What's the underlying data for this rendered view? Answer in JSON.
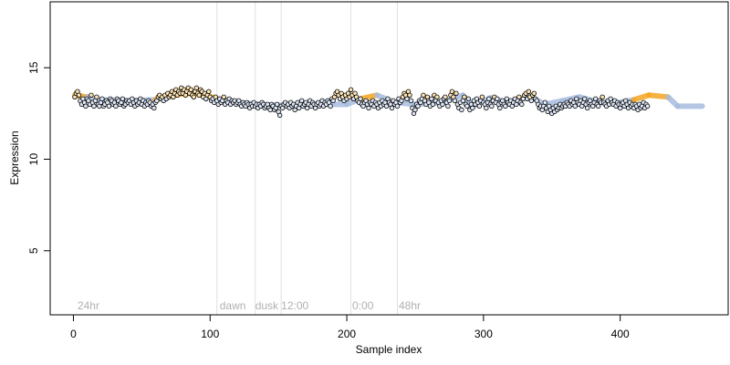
{
  "chart_data": {
    "type": "scatter",
    "title": "",
    "xlabel": "Sample index",
    "ylabel": "Expression",
    "xlim": [
      -17,
      479
    ],
    "ylim": [
      1.5,
      18.6
    ],
    "xticks": [
      0,
      100,
      200,
      300,
      400
    ],
    "yticks": [
      5,
      10,
      15
    ],
    "grid": false,
    "legend": "none",
    "vlines": [
      105,
      133,
      152,
      203,
      237
    ],
    "annotations": [
      {
        "x": 3,
        "label": "24hr"
      },
      {
        "x": 107,
        "label": "dawn"
      },
      {
        "x": 133,
        "label": "dusk"
      },
      {
        "x": 152,
        "label": "12:00"
      },
      {
        "x": 204,
        "label": "0:00"
      },
      {
        "x": 238,
        "label": "48hr"
      }
    ],
    "annotation_y": 2.0,
    "colors": {
      "fit_low": "#a8bde0",
      "fit_high": "#f5a623",
      "vline": "#e0e0e0",
      "point_fill_low": "#dde6f5",
      "point_fill_high": "#fbe3b5",
      "point_stroke": "#000000"
    },
    "smooth_fit": [
      {
        "x": 1,
        "y": 13.5
      },
      {
        "x": 10,
        "y": 13.4
      },
      {
        "x": 20,
        "y": 13.25
      },
      {
        "x": 40,
        "y": 13.2
      },
      {
        "x": 60,
        "y": 13.25
      },
      {
        "x": 72,
        "y": 13.5
      },
      {
        "x": 85,
        "y": 13.6
      },
      {
        "x": 95,
        "y": 13.55
      },
      {
        "x": 105,
        "y": 13.3
      },
      {
        "x": 120,
        "y": 13.1
      },
      {
        "x": 135,
        "y": 13.0
      },
      {
        "x": 150,
        "y": 12.95
      },
      {
        "x": 165,
        "y": 12.95
      },
      {
        "x": 180,
        "y": 13.0
      },
      {
        "x": 200,
        "y": 13.0
      },
      {
        "x": 210,
        "y": 13.3
      },
      {
        "x": 222,
        "y": 13.5
      },
      {
        "x": 235,
        "y": 13.1
      },
      {
        "x": 250,
        "y": 13.0
      },
      {
        "x": 270,
        "y": 13.1
      },
      {
        "x": 285,
        "y": 13.5
      },
      {
        "x": 292,
        "y": 12.9
      },
      {
        "x": 305,
        "y": 13.35
      },
      {
        "x": 318,
        "y": 13.1
      },
      {
        "x": 333,
        "y": 13.45
      },
      {
        "x": 345,
        "y": 13.0
      },
      {
        "x": 358,
        "y": 13.2
      },
      {
        "x": 370,
        "y": 13.4
      },
      {
        "x": 385,
        "y": 13.1
      },
      {
        "x": 400,
        "y": 13.1
      },
      {
        "x": 410,
        "y": 13.25
      },
      {
        "x": 421,
        "y": 13.5
      },
      {
        "x": 435,
        "y": 13.4
      },
      {
        "x": 442,
        "y": 12.9
      },
      {
        "x": 460,
        "y": 12.9
      }
    ],
    "points": {
      "x_start": 1,
      "y": [
        13.4,
        13.6,
        13.7,
        13.5,
        13.2,
        13.0,
        13.3,
        13.1,
        12.9,
        13.3,
        13.2,
        13.0,
        13.5,
        13.1,
        12.9,
        13.2,
        13.4,
        13.0,
        12.9,
        13.1,
        13.3,
        12.9,
        13.0,
        13.2,
        13.1,
        12.9,
        13.3,
        13.2,
        13.0,
        13.1,
        12.9,
        13.3,
        13.2,
        13.0,
        13.1,
        13.3,
        12.9,
        13.0,
        13.2,
        13.1,
        13.2,
        13.0,
        13.3,
        13.1,
        12.9,
        13.2,
        13.0,
        13.1,
        13.3,
        13.0,
        13.2,
        12.9,
        13.1,
        13.0,
        13.2,
        13.1,
        12.9,
        13.0,
        12.8,
        13.1,
        13.2,
        13.4,
        13.5,
        13.3,
        13.4,
        13.2,
        13.5,
        13.3,
        13.6,
        13.4,
        13.5,
        13.7,
        13.4,
        13.6,
        13.8,
        13.5,
        13.7,
        13.6,
        13.9,
        13.6,
        13.8,
        13.5,
        13.7,
        13.9,
        13.6,
        13.8,
        13.5,
        13.4,
        13.7,
        13.9,
        13.6,
        13.5,
        13.8,
        13.7,
        13.4,
        13.6,
        13.3,
        13.5,
        13.7,
        13.4,
        13.2,
        13.3,
        13.1,
        13.4,
        13.2,
        13.0,
        13.3,
        13.1,
        13.2,
        13.4,
        13.0,
        13.2,
        13.1,
        13.3,
        13.0,
        13.2,
        13.1,
        13.2,
        13.0,
        13.1,
        13.2,
        13.0,
        12.9,
        13.1,
        13.0,
        12.9,
        13.1,
        13.0,
        12.8,
        13.0,
        12.9,
        13.1,
        12.9,
        13.0,
        12.8,
        13.0,
        12.9,
        13.1,
        13.0,
        12.8,
        12.9,
        13.0,
        12.8,
        12.7,
        13.0,
        12.9,
        12.7,
        12.8,
        13.0,
        12.6,
        12.4,
        12.9,
        12.8,
        13.0,
        13.1,
        12.9,
        13.0,
        12.8,
        13.1,
        12.9,
        13.0,
        12.7,
        12.9,
        13.1,
        12.8,
        13.0,
        13.2,
        12.9,
        13.0,
        13.1,
        12.8,
        13.0,
        13.2,
        12.9,
        13.1,
        13.0,
        12.8,
        13.0,
        13.1,
        12.9,
        13.0,
        13.2,
        12.9,
        13.1,
        13.0,
        13.2,
        13.1,
        12.9,
        13.3,
        13.2,
        13.4,
        13.6,
        13.7,
        13.5,
        13.3,
        13.6,
        13.4,
        13.2,
        13.5,
        13.3,
        13.6,
        13.4,
        13.8,
        13.5,
        13.3,
        13.6,
        13.4,
        13.2,
        13.1,
        13.3,
        13.0,
        12.9,
        13.1,
        13.2,
        13.0,
        12.8,
        13.1,
        13.0,
        13.2,
        12.9,
        13.1,
        13.0,
        12.8,
        13.1,
        12.9,
        13.2,
        13.0,
        13.1,
        12.9,
        13.3,
        13.1,
        13.0,
        12.8,
        13.2,
        13.0,
        13.1,
        12.9,
        13.3,
        13.1,
        13.2,
        13.4,
        13.6,
        13.5,
        13.3,
        13.7,
        13.5,
        13.2,
        12.8,
        12.5,
        12.7,
        13.0,
        12.9,
        13.2,
        13.1,
        13.3,
        13.5,
        13.2,
        13.0,
        13.4,
        13.1,
        12.9,
        13.3,
        13.0,
        13.5,
        13.2,
        13.4,
        13.1,
        12.9,
        13.2,
        13.0,
        13.3,
        13.4,
        13.1,
        12.9,
        13.2,
        13.5,
        13.7,
        13.4,
        13.2,
        13.6,
        13.0,
        12.8,
        13.1,
        12.7,
        13.2,
        13.4,
        13.0,
        12.9,
        13.3,
        12.7,
        13.0,
        12.8,
        13.2,
        13.0,
        13.3,
        13.1,
        12.9,
        13.2,
        13.4,
        13.1,
        13.0,
        12.8,
        13.1,
        13.3,
        13.0,
        12.9,
        13.2,
        13.4,
        13.1,
        13.3,
        13.0,
        12.8,
        13.1,
        13.2,
        13.0,
        12.9,
        13.3,
        13.1,
        13.0,
        13.2,
        12.9,
        13.1,
        13.3,
        13.0,
        13.2,
        13.4,
        13.1,
        13.0,
        13.3,
        13.5,
        13.6,
        13.3,
        13.7,
        13.4,
        13.2,
        13.5,
        13.6,
        13.3,
        13.2,
        13.0,
        12.8,
        12.9,
        12.7,
        12.9,
        13.1,
        12.8,
        12.6,
        12.9,
        12.7,
        12.5,
        12.8,
        12.6,
        12.9,
        12.7,
        12.8,
        13.0,
        12.8,
        12.9,
        13.0,
        12.9,
        13.1,
        13.0,
        12.9,
        13.2,
        13.0,
        13.1,
        12.9,
        13.3,
        13.1,
        13.0,
        13.2,
        12.9,
        13.1,
        13.3,
        13.0,
        12.8,
        13.1,
        13.2,
        13.0,
        12.9,
        13.1,
        13.3,
        13.0,
        12.9,
        13.2,
        13.1,
        13.4,
        13.1,
        13.0,
        12.9,
        13.2,
        13.0,
        13.3,
        13.1,
        13.0,
        13.2,
        12.9,
        13.1,
        13.0,
        12.8,
        13.0,
        13.1,
        12.9,
        13.2,
        13.0,
        12.8,
        13.1,
        12.9,
        13.0,
        12.8,
        13.0,
        12.9,
        12.7,
        13.0,
        12.8,
        12.9,
        13.1,
        12.8,
        13.0,
        12.9
      ]
    }
  }
}
